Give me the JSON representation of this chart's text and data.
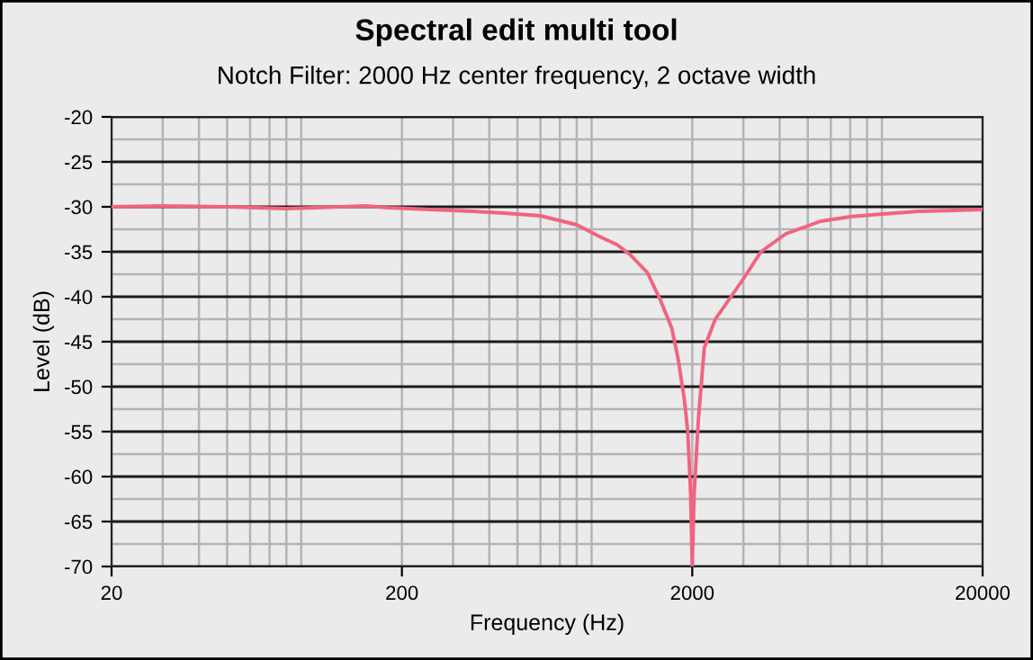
{
  "chart_data": {
    "type": "line",
    "title": "Spectral edit multi tool",
    "subtitle": "Notch Filter: 2000 Hz center frequency, 2 octave width",
    "xlabel": "Frequency (Hz)",
    "ylabel": "Level (dB)",
    "log": "x",
    "grid": true,
    "marker": "none",
    "line_style": "solid",
    "series": [
      {
        "color": "#f2637f",
        "x": [
          20,
          30,
          50,
          80,
          100,
          150,
          180,
          250,
          350,
          450,
          600,
          800,
          958,
          1100,
          1220,
          1400,
          1550,
          1700,
          1790,
          1880,
          1930,
          1975,
          2000,
          2030,
          2100,
          2200,
          2400,
          2680,
          3000,
          3450,
          4200,
          5540,
          7000,
          9030,
          12000,
          16000,
          20000
        ],
        "values": [
          -30,
          -29.9,
          -30,
          -30.2,
          -30.1,
          -29.9,
          -30.1,
          -30.3,
          -30.5,
          -30.7,
          -31,
          -32,
          -33.3,
          -34.2,
          -35.3,
          -37.3,
          -40.3,
          -43.5,
          -47,
          -51.5,
          -55,
          -62,
          -70,
          -62,
          -53.6,
          -45.7,
          -42.5,
          -40.3,
          -38,
          -35,
          -33,
          -31.6,
          -31.1,
          -30.8,
          -30.5,
          -30.4,
          -30.3
        ]
      }
    ],
    "xlim": [
      20,
      20000
    ],
    "ylim": [
      -70,
      -20
    ],
    "xticks": [
      20,
      200,
      2000,
      20000
    ],
    "yticks": [
      -20,
      -25,
      -30,
      -35,
      -40,
      -45,
      -50,
      -55,
      -60,
      -65,
      -70
    ]
  }
}
